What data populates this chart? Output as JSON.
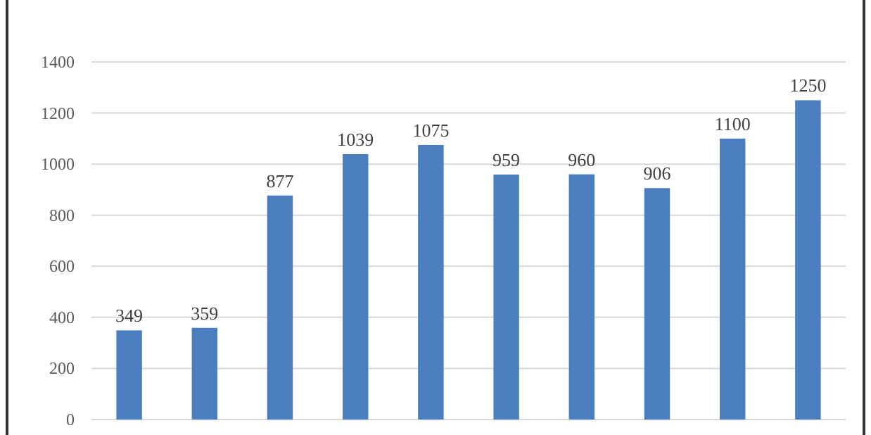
{
  "chart_data": {
    "type": "bar",
    "categories": [
      null,
      null,
      null,
      null,
      null,
      null,
      null,
      null,
      null,
      null
    ],
    "values": [
      349,
      359,
      877,
      1039,
      1075,
      959,
      960,
      906,
      1100,
      1250
    ],
    "color": "#4a7ebf",
    "ylim": [
      0,
      1400
    ],
    "yticks": [
      0,
      200,
      400,
      600,
      800,
      1000,
      1200,
      1400
    ],
    "grid": "y",
    "data_labels": true
  }
}
